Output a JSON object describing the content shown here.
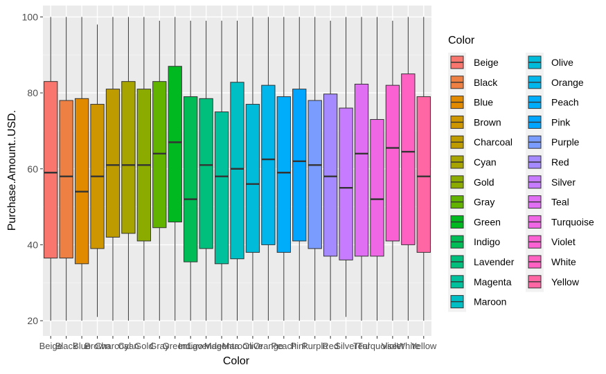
{
  "chart_data": {
    "type": "box",
    "xlabel": "Color",
    "ylabel": "Purchase.Amount..USD.",
    "ylim": [
      16,
      103
    ],
    "yticks": [
      20,
      40,
      60,
      80,
      100
    ],
    "legend": {
      "title": "Color",
      "placement": "right",
      "columns": 2
    },
    "grid": true,
    "categories": [
      "Beige",
      "Black",
      "Blue",
      "Brown",
      "Charcoal",
      "Cyan",
      "Gold",
      "Gray",
      "Green",
      "Indigo",
      "Lavender",
      "Magenta",
      "Maroon",
      "Olive",
      "Orange",
      "Peach",
      "Pink",
      "Purple",
      "Red",
      "Silver",
      "Teal",
      "Turquoise",
      "Violet",
      "White",
      "Yellow"
    ],
    "colors": [
      "#F8766D",
      "#EE8043",
      "#E18A00",
      "#CE9600",
      "#BE9C00",
      "#A7A400",
      "#8CAB00",
      "#62B200",
      "#00B81F",
      "#00BC56",
      "#00BF7D",
      "#00C19C",
      "#00BFC4",
      "#00BBDA",
      "#00B6EB",
      "#00ADFA",
      "#00A5FF",
      "#7B9CFF",
      "#A58AFF",
      "#C77CFF",
      "#E16FF4",
      "#F067E6",
      "#FA62D4",
      "#FF61C3",
      "#FF67A4"
    ],
    "series": [
      {
        "category": "Beige",
        "min": 20,
        "q1": 36.5,
        "median": 59,
        "q3": 83,
        "max": 100
      },
      {
        "category": "Black",
        "min": 20,
        "q1": 36.5,
        "median": 58,
        "q3": 78,
        "max": 100
      },
      {
        "category": "Blue",
        "min": 20,
        "q1": 35,
        "median": 54,
        "q3": 78.5,
        "max": 100
      },
      {
        "category": "Brown",
        "min": 21,
        "q1": 39,
        "median": 58,
        "q3": 77,
        "max": 98
      },
      {
        "category": "Charcoal",
        "min": 20,
        "q1": 42,
        "median": 61,
        "q3": 81,
        "max": 100
      },
      {
        "category": "Cyan",
        "min": 20,
        "q1": 43,
        "median": 61,
        "q3": 83,
        "max": 100
      },
      {
        "category": "Gold",
        "min": 20,
        "q1": 41,
        "median": 61,
        "q3": 81,
        "max": 100
      },
      {
        "category": "Gray",
        "min": 20,
        "q1": 44.5,
        "median": 64,
        "q3": 83,
        "max": 99
      },
      {
        "category": "Green",
        "min": 20,
        "q1": 46,
        "median": 67,
        "q3": 87,
        "max": 100
      },
      {
        "category": "Indigo",
        "min": 20,
        "q1": 35.5,
        "median": 52,
        "q3": 79,
        "max": 99
      },
      {
        "category": "Lavender",
        "min": 20,
        "q1": 39,
        "median": 61,
        "q3": 78.5,
        "max": 99
      },
      {
        "category": "Magenta",
        "min": 20,
        "q1": 35,
        "median": 58,
        "q3": 75,
        "max": 99
      },
      {
        "category": "Maroon",
        "min": 20,
        "q1": 36.3,
        "median": 60,
        "q3": 82.8,
        "max": 99
      },
      {
        "category": "Olive",
        "min": 20,
        "q1": 38,
        "median": 56,
        "q3": 77,
        "max": 100
      },
      {
        "category": "Orange",
        "min": 20,
        "q1": 40,
        "median": 62.5,
        "q3": 82,
        "max": 100
      },
      {
        "category": "Peach",
        "min": 20,
        "q1": 38,
        "median": 59,
        "q3": 79,
        "max": 100
      },
      {
        "category": "Pink",
        "min": 20,
        "q1": 41,
        "median": 62,
        "q3": 81,
        "max": 100
      },
      {
        "category": "Purple",
        "min": 20,
        "q1": 39,
        "median": 61,
        "q3": 78,
        "max": 100
      },
      {
        "category": "Red",
        "min": 20,
        "q1": 37,
        "median": 58,
        "q3": 79.7,
        "max": 99
      },
      {
        "category": "Silver",
        "min": 21,
        "q1": 36,
        "median": 55,
        "q3": 76,
        "max": 100
      },
      {
        "category": "Teal",
        "min": 20,
        "q1": 37,
        "median": 64,
        "q3": 82.3,
        "max": 100
      },
      {
        "category": "Turquoise",
        "min": 20,
        "q1": 37,
        "median": 52,
        "q3": 73,
        "max": 100
      },
      {
        "category": "Violet",
        "min": 20,
        "q1": 41,
        "median": 65.5,
        "q3": 82,
        "max": 99
      },
      {
        "category": "White",
        "min": 20,
        "q1": 40,
        "median": 64.5,
        "q3": 85,
        "max": 100
      },
      {
        "category": "Yellow",
        "min": 20,
        "q1": 38,
        "median": 58,
        "q3": 79,
        "max": 100
      }
    ]
  }
}
